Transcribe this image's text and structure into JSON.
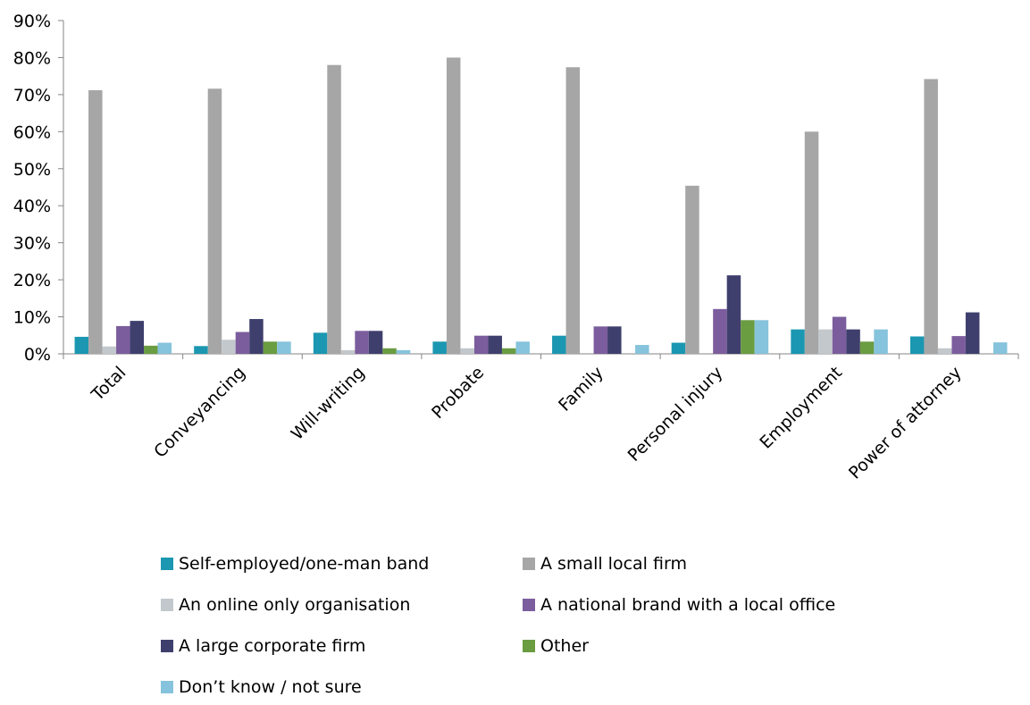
{
  "chart_data": {
    "type": "bar",
    "categories": [
      "Total",
      "Conveyancing",
      "Will-writing",
      "Probate",
      "Family",
      "Personal injury",
      "Employment",
      "Power of attorney"
    ],
    "series": [
      {
        "name": "Self-employed/one-man band",
        "color": "#1b97b1",
        "values": [
          4.6,
          2.1,
          5.7,
          3.3,
          4.9,
          3.0,
          6.6,
          4.7
        ]
      },
      {
        "name": "A small local firm",
        "color": "#a6a6a6",
        "values": [
          71.2,
          71.6,
          78.0,
          80.0,
          77.4,
          45.4,
          60.0,
          74.2
        ]
      },
      {
        "name": "An online only organisation",
        "color": "#c3c8cc",
        "values": [
          2.0,
          3.8,
          1.0,
          1.5,
          0,
          0,
          6.6,
          1.5
        ]
      },
      {
        "name": "A national brand with a local office",
        "color": "#7b5d9d",
        "values": [
          7.5,
          5.9,
          6.2,
          4.9,
          7.4,
          12.1,
          10.0,
          4.8
        ]
      },
      {
        "name": "A large corporate firm",
        "color": "#3f3f6e",
        "values": [
          8.9,
          9.4,
          6.2,
          4.9,
          7.4,
          21.2,
          6.6,
          11.2
        ]
      },
      {
        "name": "Other",
        "color": "#6a9c41",
        "values": [
          2.2,
          3.3,
          1.5,
          1.5,
          0,
          9.1,
          3.3,
          0
        ]
      },
      {
        "name": "Don’t know / not sure",
        "color": "#86c3dc",
        "values": [
          3.0,
          3.3,
          1.0,
          3.3,
          2.4,
          9.1,
          6.6,
          3.1
        ]
      }
    ],
    "y_ticks": [
      "0%",
      "10%",
      "20%",
      "30%",
      "40%",
      "50%",
      "60%",
      "70%",
      "80%",
      "90%"
    ],
    "ylim": [
      0,
      90
    ],
    "grid": false,
    "legend_position": "bottom"
  }
}
